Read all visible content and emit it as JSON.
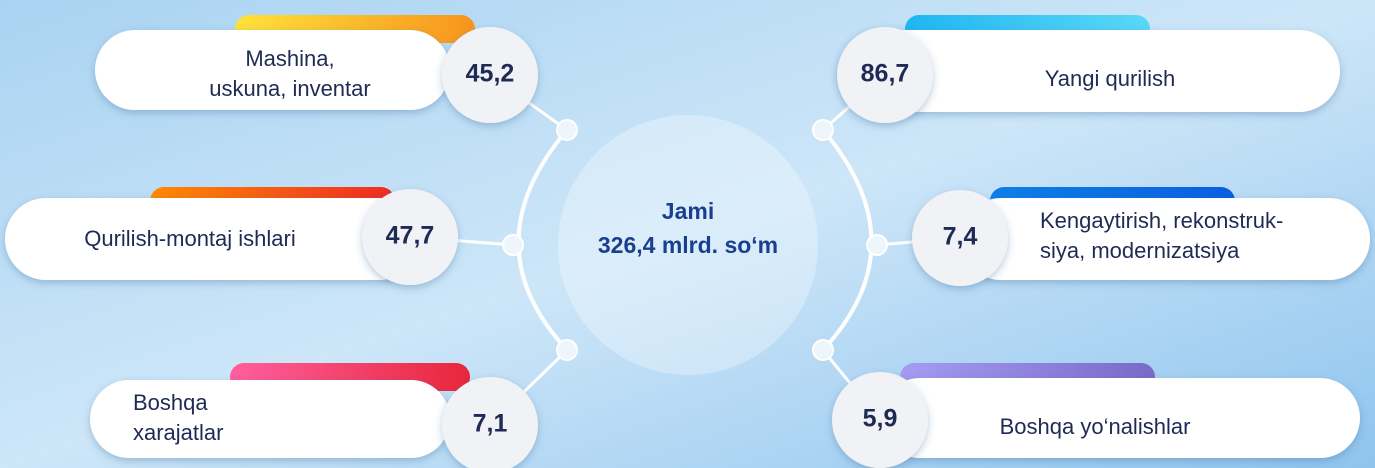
{
  "center": {
    "lines": [
      "Jami",
      "326,4 mlrd. so‘m"
    ]
  },
  "items": [
    {
      "value": "45,2",
      "lines": [
        "Mashina,",
        "uskuna, inventar"
      ]
    },
    {
      "value": "47,7",
      "lines": [
        "Qurilish-montaj ishlari"
      ]
    },
    {
      "value": "7,1",
      "lines": [
        "Boshqa",
        "xarajatlar"
      ]
    },
    {
      "value": "86,7",
      "lines": [
        "Yangi qurilish"
      ]
    },
    {
      "value": "7,4",
      "lines": [
        "Kengaytirish, rekonstruk-",
        "siya, modernizatsiya"
      ]
    },
    {
      "value": "5,9",
      "lines": [
        "Boshqa yo‘nalishlar"
      ]
    }
  ]
}
